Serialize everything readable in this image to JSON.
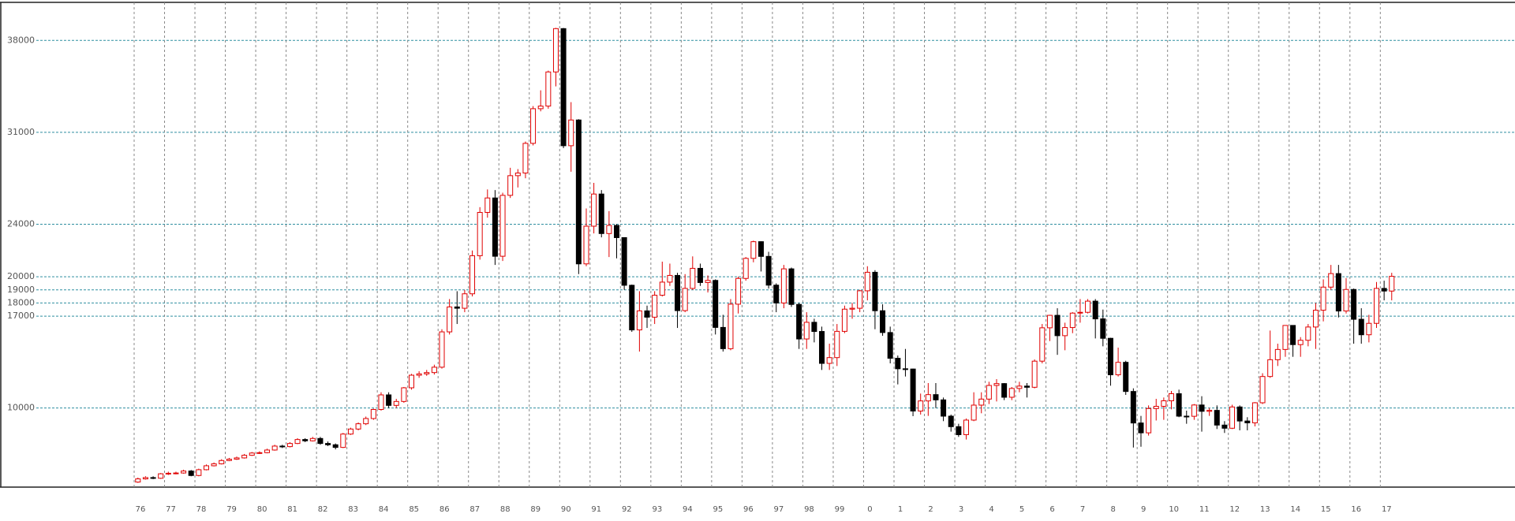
{
  "chart_data": {
    "type": "candlestick",
    "categories": [
      "76",
      null,
      null,
      null,
      "77",
      null,
      null,
      null,
      "78",
      null,
      null,
      null,
      "79",
      null,
      null,
      null,
      "80",
      null,
      null,
      null,
      "81",
      null,
      null,
      null,
      "82",
      null,
      null,
      null,
      "83",
      null,
      null,
      null,
      "84",
      null,
      null,
      null,
      "85",
      null,
      null,
      null,
      "86",
      null,
      null,
      null,
      "87",
      null,
      null,
      null,
      "88",
      null,
      null,
      null,
      "89",
      null,
      null,
      null,
      "90",
      null,
      null,
      null,
      "91",
      null,
      null,
      null,
      "92",
      null,
      null,
      null,
      "93",
      null,
      null,
      null,
      "94",
      null,
      null,
      null,
      "95",
      null,
      null,
      null,
      "96",
      null,
      null,
      null,
      "97",
      null,
      null,
      null,
      "98",
      null,
      null,
      null,
      "99",
      null,
      null,
      null,
      "0",
      null,
      null,
      null,
      "1",
      null,
      null,
      null,
      "2",
      null,
      null,
      null,
      "3",
      null,
      null,
      null,
      "4",
      null,
      null,
      null,
      "5",
      null,
      null,
      null,
      "6",
      null,
      null,
      null,
      "7",
      null,
      null,
      null,
      "8",
      null,
      null,
      null,
      "9",
      null,
      null,
      null,
      "10",
      null,
      null,
      null,
      "11",
      null,
      null,
      null,
      "12",
      null,
      null,
      null,
      "13",
      null,
      null,
      null,
      "14",
      null,
      null,
      null,
      "15",
      null,
      null,
      null,
      "16",
      null,
      null,
      null,
      "17",
      null
    ],
    "open": [
      4360,
      4600,
      4700,
      4650,
      4990,
      5030,
      5050,
      5200,
      4860,
      5300,
      5600,
      5750,
      6000,
      6100,
      6200,
      6400,
      6570,
      6600,
      6800,
      7100,
      7060,
      7300,
      7600,
      7500,
      7680,
      7300,
      7200,
      7000,
      8016,
      8400,
      8800,
      9200,
      9890,
      11000,
      10200,
      10500,
      11540,
      12500,
      12600,
      12700,
      13110,
      15800,
      17700,
      17600,
      18700,
      21600,
      24900,
      26000,
      21560,
      26200,
      27700,
      27900,
      30160,
      32800,
      33000,
      35600,
      38900,
      29980,
      31940,
      20980,
      23850,
      26300,
      23290,
      23910,
      22980,
      19350,
      15950,
      17400,
      16920,
      18590,
      19590,
      20100,
      17420,
      19110,
      20640,
      19560,
      19720,
      16140,
      14520,
      17910,
      19870,
      21400,
      22670,
      21550,
      19360,
      18000,
      20600,
      17890,
      15260,
      16530,
      15830,
      13400,
      13840,
      15840,
      17530,
      17600,
      18930,
      20340,
      17410,
      15750,
      13790,
      12990,
      12970,
      9770,
      10540,
      11020,
      10620,
      9380,
      8580,
      7970,
      9080,
      10220,
      10680,
      11720,
      11860,
      10820,
      11490,
      11670,
      11580,
      13570,
      16110,
      17060,
      15510,
      16130,
      17230,
      17290,
      18140,
      16790,
      15310,
      12530,
      13480,
      11260,
      8860,
      8110,
      9960,
      10130,
      10550,
      11090,
      9380,
      9370,
      10230,
      9750,
      9820,
      8700,
      8460,
      10080,
      9010,
      8870,
      10400,
      12400,
      13680,
      14460,
      16290,
      14830,
      15160,
      16170,
      17450,
      19210,
      20240,
      17390,
      19030,
      16760,
      15580,
      16450,
      19110,
      18910
    ],
    "high": [
      4700,
      4800,
      4800,
      5050,
      5150,
      5150,
      5300,
      5280,
      5380,
      5700,
      5850,
      6100,
      6200,
      6300,
      6500,
      6650,
      6700,
      6900,
      7200,
      7200,
      7400,
      7700,
      7700,
      7800,
      7800,
      7450,
      7300,
      8100,
      8500,
      8900,
      9350,
      9950,
      11200,
      11200,
      10700,
      11600,
      12600,
      12800,
      12900,
      13300,
      16000,
      18300,
      18900,
      19000,
      22000,
      25300,
      26650,
      26600,
      26400,
      28300,
      28200,
      30300,
      33000,
      34200,
      35700,
      38960,
      38950,
      33300,
      32000,
      25200,
      27150,
      26600,
      25000,
      24000,
      23000,
      19400,
      18900,
      17800,
      18900,
      21150,
      21000,
      20300,
      20200,
      21550,
      21000,
      20100,
      19800,
      17100,
      18300,
      20000,
      21500,
      22750,
      22700,
      21900,
      19500,
      20900,
      20700,
      18000,
      17300,
      16800,
      16200,
      14900,
      16400,
      17800,
      18000,
      19000,
      20800,
      20500,
      17900,
      16200,
      14000,
      14500,
      13000,
      11100,
      11900,
      11900,
      10800,
      9500,
      8800,
      9200,
      11200,
      11200,
      12000,
      12200,
      11900,
      11600,
      12000,
      11900,
      13700,
      16400,
      17100,
      17600,
      16500,
      17300,
      18300,
      18300,
      18300,
      17500,
      15350,
      14600,
      13600,
      11500,
      9400,
      10200,
      10700,
      10800,
      11300,
      11400,
      9800,
      10300,
      10900,
      10000,
      10200,
      9000,
      10250,
      10200,
      9300,
      10450,
      12650,
      15900,
      14900,
      16300,
      16300,
      15400,
      16400,
      18000,
      19800,
      20900,
      20900,
      19900,
      19100,
      17600,
      17100,
      19600,
      19700,
      20300
    ],
    "low": [
      4300,
      4550,
      4580,
      4600,
      4900,
      4950,
      5000,
      4800,
      4800,
      5250,
      5550,
      5700,
      5950,
      6050,
      6150,
      6350,
      6500,
      6550,
      6750,
      6950,
      7000,
      7250,
      7400,
      7450,
      7200,
      7100,
      6850,
      6950,
      7950,
      8300,
      8700,
      9100,
      9800,
      10000,
      10000,
      10400,
      11400,
      12300,
      12450,
      12550,
      13000,
      15600,
      16400,
      17300,
      18500,
      21300,
      24500,
      20900,
      21200,
      26000,
      26800,
      27500,
      30000,
      32600,
      32800,
      34500,
      29800,
      28000,
      20200,
      20800,
      23300,
      23000,
      21500,
      21400,
      19000,
      15800,
      14300,
      16100,
      16400,
      18500,
      19300,
      16100,
      17300,
      19000,
      19300,
      18800,
      15600,
      14300,
      14400,
      17200,
      19700,
      21100,
      20400,
      19100,
      17300,
      17600,
      17700,
      14500,
      14500,
      15000,
      12900,
      12900,
      13200,
      15700,
      16800,
      17300,
      18200,
      16000,
      15500,
      13400,
      11800,
      12400,
      9380,
      9500,
      9400,
      10000,
      9000,
      8200,
      7800,
      7600,
      9000,
      9600,
      10300,
      10500,
      10600,
      10600,
      11200,
      10800,
      11500,
      13400,
      15100,
      14050,
      14400,
      15700,
      16500,
      17200,
      15300,
      14700,
      11700,
      12400,
      11000,
      6990,
      7050,
      7900,
      9050,
      9100,
      9900,
      9300,
      8800,
      9100,
      8200,
      9400,
      8400,
      8100,
      8400,
      8300,
      8300,
      8600,
      10300,
      12300,
      13200,
      13900,
      13900,
      13900,
      14700,
      14500,
      16600,
      19000,
      16900,
      17200,
      14900,
      14900,
      15000,
      16100,
      18200,
      18200
    ],
    "close": [
      4600,
      4700,
      4650,
      4990,
      5030,
      5050,
      5200,
      4860,
      5300,
      5600,
      5750,
      6000,
      6100,
      6200,
      6400,
      6570,
      6600,
      6800,
      7100,
      7060,
      7300,
      7600,
      7500,
      7680,
      7300,
      7200,
      7000,
      8016,
      8400,
      8800,
      9200,
      9890,
      11000,
      10200,
      10500,
      11540,
      12500,
      12600,
      12700,
      13110,
      15800,
      17700,
      17600,
      18700,
      21600,
      24900,
      26000,
      21560,
      26200,
      27700,
      27900,
      30160,
      32800,
      33000,
      35600,
      38900,
      29980,
      31940,
      20980,
      23850,
      26300,
      23290,
      23910,
      22980,
      19350,
      15950,
      17400,
      16920,
      18590,
      19590,
      20100,
      17420,
      19110,
      20640,
      19560,
      19720,
      16140,
      14520,
      17910,
      19870,
      21400,
      22670,
      21550,
      19360,
      18000,
      20600,
      17890,
      15260,
      16530,
      15830,
      13400,
      13840,
      15840,
      17530,
      17600,
      18930,
      20340,
      17410,
      15750,
      13790,
      12990,
      12970,
      9770,
      10540,
      11020,
      10620,
      9380,
      8580,
      7970,
      9080,
      10220,
      10680,
      11720,
      11860,
      10820,
      11490,
      11670,
      11580,
      13570,
      16110,
      17060,
      15510,
      16130,
      17230,
      17290,
      18140,
      16790,
      15310,
      12530,
      13480,
      11260,
      8860,
      8110,
      9960,
      10130,
      10550,
      11090,
      9380,
      9370,
      10230,
      9750,
      9820,
      8700,
      8460,
      10080,
      9010,
      8870,
      10400,
      12400,
      13680,
      14460,
      16290,
      14830,
      15160,
      16170,
      17450,
      19210,
      20240,
      17390,
      19030,
      16760,
      15580,
      16450,
      19110,
      18910,
      20030
    ],
    "ylim": [
      3975,
      40900
    ],
    "yticks": [
      10000,
      17000,
      18000,
      19000,
      20000,
      24000,
      31000,
      38000
    ],
    "grid": true,
    "up_color": "#e00000",
    "down_color": "#000000",
    "grid_color": "#2f8fa0"
  }
}
